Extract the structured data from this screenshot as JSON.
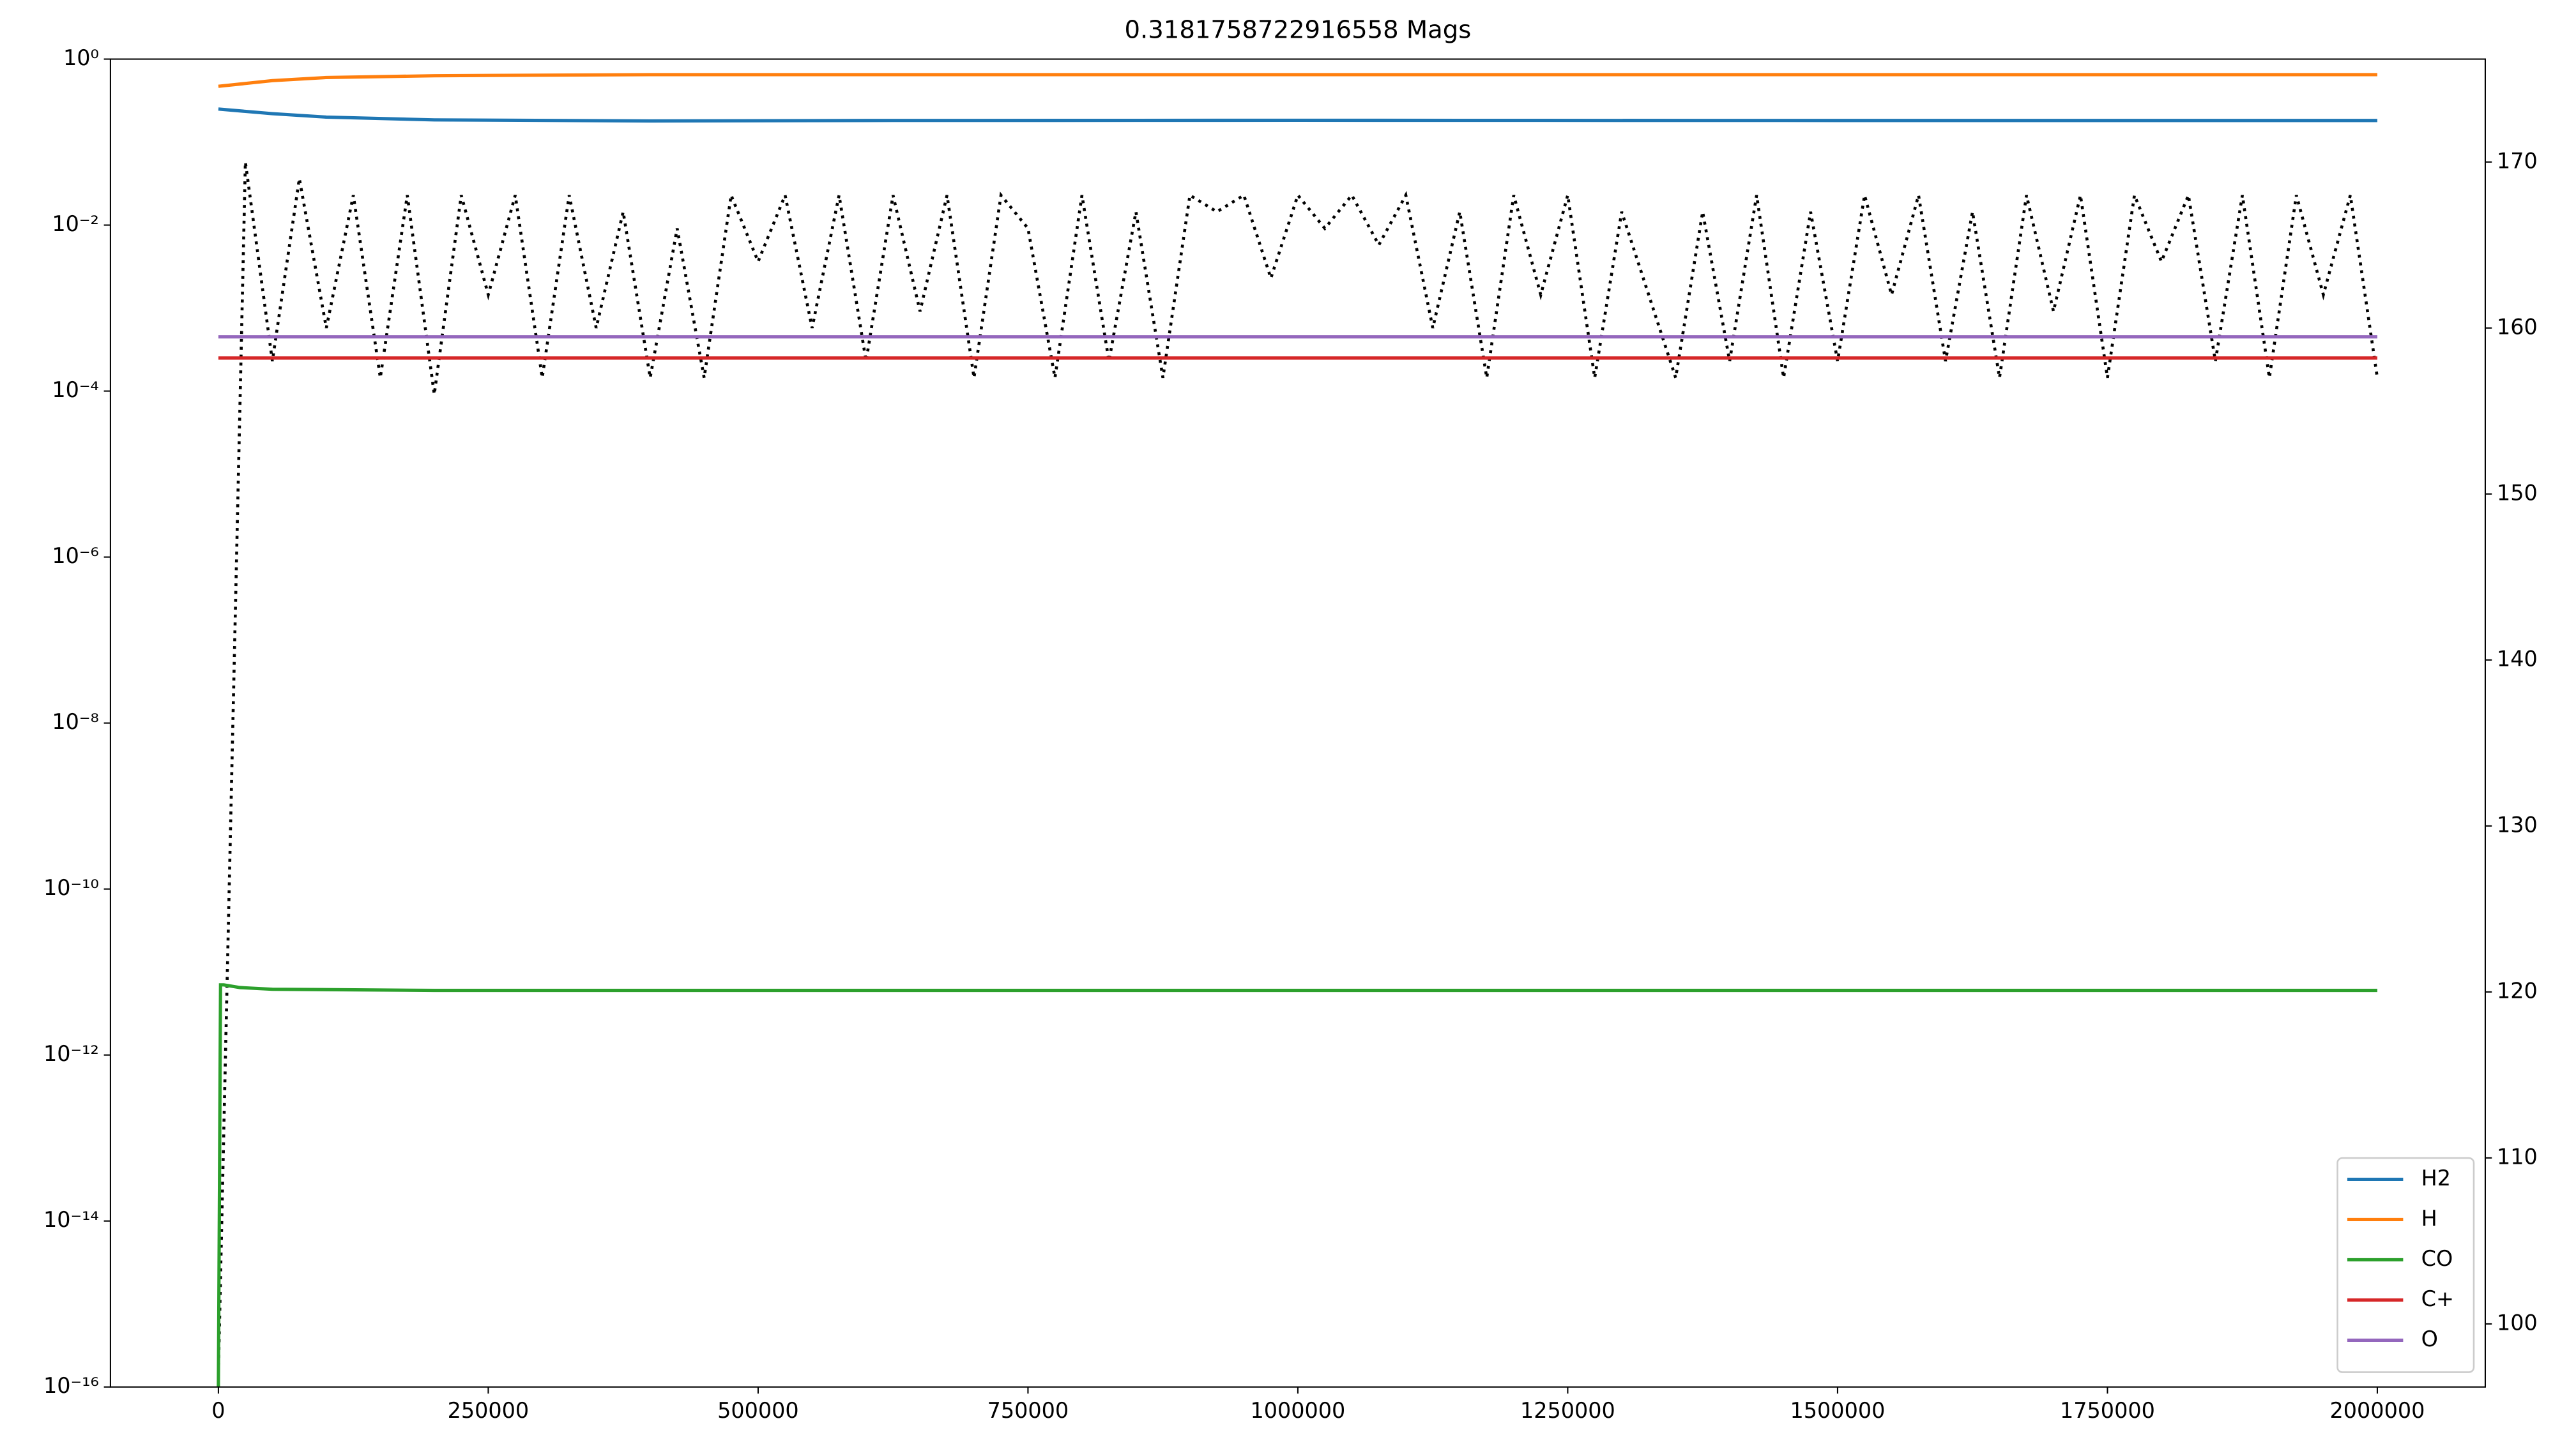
{
  "chart_data": {
    "type": "line",
    "title": "0.3181758722916558 Mags",
    "xlim": [
      -100000,
      2100000
    ],
    "xticks": [
      0,
      250000,
      500000,
      750000,
      1000000,
      1250000,
      1500000,
      1750000,
      2000000
    ],
    "ylim": [
      1e-16,
      1
    ],
    "yscale": "log",
    "yticks": [
      {
        "value": 1e-16,
        "label": "10⁻¹⁶"
      },
      {
        "value": 1e-14,
        "label": "10⁻¹⁴"
      },
      {
        "value": 1e-12,
        "label": "10⁻¹²"
      },
      {
        "value": 1e-10,
        "label": "10⁻¹⁰"
      },
      {
        "value": 1e-08,
        "label": "10⁻⁸"
      },
      {
        "value": 1e-06,
        "label": "10⁻⁶"
      },
      {
        "value": 0.0001,
        "label": "10⁻⁴"
      },
      {
        "value": 0.01,
        "label": "10⁻²"
      },
      {
        "value": 1,
        "label": "10⁰"
      }
    ],
    "y2lim": [
      96.2,
      176.2
    ],
    "y2ticks": [
      100,
      110,
      120,
      130,
      140,
      150,
      160,
      170
    ],
    "legend": "lower right",
    "series": [
      {
        "name": "H2",
        "color": "#1f77b4",
        "x": [
          0,
          50000,
          100000,
          200000,
          400000,
          600000,
          1000000,
          1500000,
          2000000
        ],
        "values": [
          0.25,
          0.22,
          0.2,
          0.185,
          0.18,
          0.182,
          0.183,
          0.182,
          0.182
        ]
      },
      {
        "name": "H",
        "color": "#ff7f0e",
        "x": [
          0,
          50000,
          100000,
          200000,
          400000,
          600000,
          1000000,
          1500000,
          2000000
        ],
        "values": [
          0.47,
          0.55,
          0.6,
          0.63,
          0.65,
          0.65,
          0.65,
          0.65,
          0.65
        ]
      },
      {
        "name": "CO",
        "color": "#2ca02c",
        "x": [
          0,
          2000,
          5000,
          20000,
          50000,
          200000,
          1000000,
          2000000
        ],
        "values": [
          1e-16,
          7e-12,
          7e-12,
          6.5e-12,
          6.2e-12,
          6e-12,
          6e-12,
          6e-12
        ]
      },
      {
        "name": "C+",
        "color": "#d62728",
        "x": [
          0,
          2000000
        ],
        "values": [
          0.00025,
          0.00025
        ]
      },
      {
        "name": "O",
        "color": "#9467bd",
        "x": [
          0,
          2000000
        ],
        "values": [
          0.00045,
          0.00045
        ]
      },
      {
        "color": "#000000",
        "axis": "y2",
        "linestyle": "dotted",
        "x": [
          0,
          25000,
          50000,
          75000,
          100000,
          125000,
          150000,
          175000,
          200000,
          225000,
          250000,
          275000,
          300000,
          325000,
          350000,
          375000,
          400000,
          425000,
          450000,
          475000,
          500000,
          525000,
          550000,
          575000,
          600000,
          625000,
          650000,
          675000,
          700000,
          725000,
          750000,
          775000,
          800000,
          825000,
          850000,
          875000,
          900000,
          925000,
          950000,
          975000,
          1000000,
          1025000,
          1050000,
          1075000,
          1100000,
          1125000,
          1150000,
          1175000,
          1200000,
          1225000,
          1250000,
          1275000,
          1300000,
          1325000,
          1350000,
          1375000,
          1400000,
          1425000,
          1450000,
          1475000,
          1500000,
          1525000,
          1550000,
          1575000,
          1600000,
          1625000,
          1650000,
          1675000,
          1700000,
          1725000,
          1750000,
          1775000,
          1800000,
          1825000,
          1850000,
          1875000,
          1900000,
          1925000,
          1950000,
          1975000,
          2000000
        ],
        "values": [
          97,
          170,
          158,
          169,
          160,
          168,
          157,
          168,
          156,
          168,
          162,
          168,
          157,
          168,
          160,
          167,
          157,
          166,
          157,
          168,
          164,
          168,
          160,
          168,
          158,
          168,
          161,
          168,
          157,
          168,
          166,
          157,
          168,
          158,
          167,
          157,
          168,
          167,
          168,
          163,
          168,
          166,
          168,
          165,
          168,
          160,
          167,
          157,
          168,
          162,
          168,
          157,
          167,
          162,
          157,
          167,
          158,
          168,
          157,
          167,
          158,
          168,
          162,
          168,
          158,
          167,
          157,
          168,
          161,
          168,
          157,
          168,
          164,
          168,
          158,
          168,
          157,
          168,
          162,
          168,
          157
        ]
      }
    ]
  }
}
